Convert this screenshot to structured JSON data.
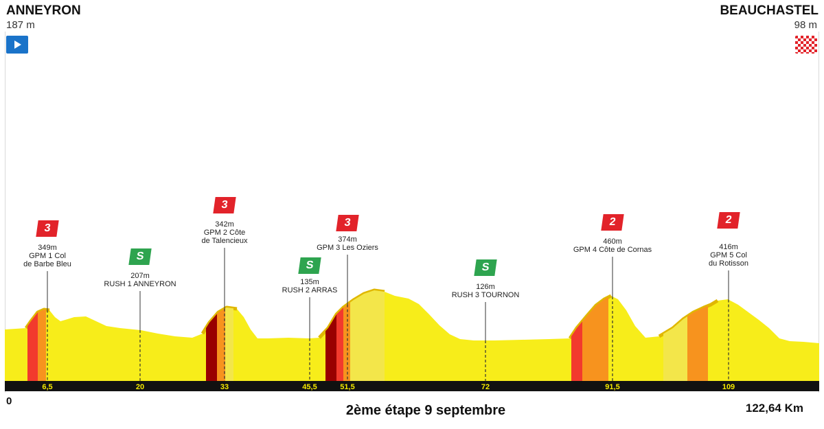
{
  "start": {
    "name": "ANNEYRON",
    "altitude": "187 m"
  },
  "finish": {
    "name": "BEAUCHASTEL",
    "altitude": "98 m"
  },
  "stage_title": "2ème étape 9 septembre",
  "distance_label": "122,64 Km",
  "km_zero": "0",
  "km_marks": [
    {
      "km": 6.5,
      "label": "6,5"
    },
    {
      "km": 20,
      "label": "20"
    },
    {
      "km": 33,
      "label": "33"
    },
    {
      "km": 45.5,
      "label": "45,5"
    },
    {
      "km": 51.5,
      "label": "51,5"
    },
    {
      "km": 72,
      "label": "72"
    },
    {
      "km": 91.5,
      "label": "91,5"
    },
    {
      "km": 109,
      "label": "109"
    }
  ],
  "points": [
    {
      "type": "gpm",
      "category": "3",
      "altitude": "349m",
      "name_lines": [
        "GPM 1 Col",
        "de Barbe Bleu"
      ]
    },
    {
      "type": "rush",
      "category": "S",
      "altitude": "207m",
      "name_lines": [
        "RUSH 1 ANNEYRON"
      ]
    },
    {
      "type": "gpm",
      "category": "3",
      "altitude": "342m",
      "name_lines": [
        "GPM 2 Côte",
        "de Talencieux"
      ]
    },
    {
      "type": "rush",
      "category": "S",
      "altitude": "135m",
      "name_lines": [
        "RUSH 2 ARRAS"
      ]
    },
    {
      "type": "gpm",
      "category": "3",
      "altitude": "374m",
      "name_lines": [
        "GPM 3 Les Oziers"
      ]
    },
    {
      "type": "rush",
      "category": "S",
      "altitude": "126m",
      "name_lines": [
        "RUSH 3 TOURNON"
      ]
    },
    {
      "type": "gpm",
      "category": "2",
      "altitude": "460m",
      "name_lines": [
        "GPM 4 Côte de Cornas"
      ]
    },
    {
      "type": "gpm",
      "category": "2",
      "altitude": "416m",
      "name_lines": [
        "GPM 5 Col",
        "du Rotisson"
      ]
    }
  ],
  "colors": {
    "profile": "#f7ed1a",
    "ridge": "#e0b700",
    "band": "#111111",
    "gpm": "#e2232a",
    "rush": "#2ea44f",
    "climb_steep": "#f23a2d",
    "climb_mid": "#f7931e",
    "climb_hard": "#990000",
    "climb_light": "#f3e64a"
  }
}
